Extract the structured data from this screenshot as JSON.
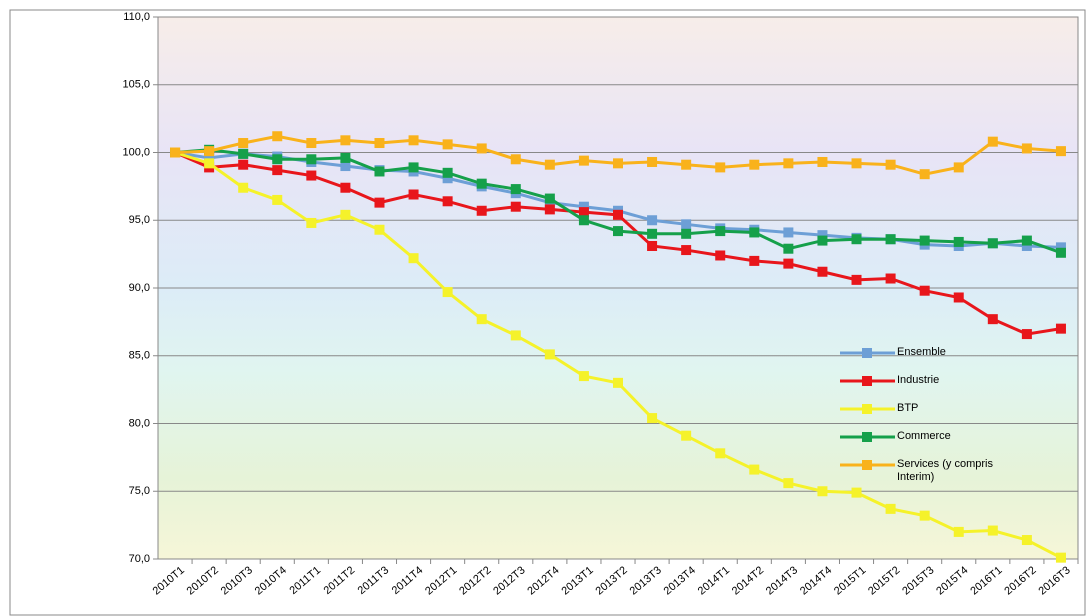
{
  "chart_data": {
    "type": "line",
    "categories": [
      "2010T1",
      "2010T2",
      "2010T3",
      "2010T4",
      "2011T1",
      "2011T2",
      "2011T3",
      "2011T4",
      "2012T1",
      "2012T2",
      "2012T3",
      "2012T4",
      "2013T1",
      "2013T2",
      "2013T3",
      "2013T4",
      "2014T1",
      "2014T2",
      "2014T3",
      "2014T4",
      "2015T1",
      "2015T2",
      "2015T3",
      "2015T4",
      "2016T1",
      "2016T2",
      "2016T3"
    ],
    "series": [
      {
        "name": "Ensemble",
        "color": "#6d9fd6",
        "values": [
          100,
          99.6,
          99.9,
          99.7,
          99.3,
          99.0,
          98.7,
          98.6,
          98.1,
          97.5,
          97.0,
          96.3,
          96.0,
          95.7,
          95.0,
          94.7,
          94.4,
          94.3,
          94.1,
          93.9,
          93.7,
          93.6,
          93.2,
          93.1,
          93.3,
          93.1,
          93.0
        ]
      },
      {
        "name": "Industrie",
        "color": "#e8161b",
        "values": [
          100,
          98.9,
          99.1,
          98.7,
          98.3,
          97.4,
          96.3,
          96.9,
          96.4,
          95.7,
          96.0,
          95.8,
          95.6,
          95.4,
          93.1,
          92.8,
          92.4,
          92.0,
          91.8,
          91.2,
          90.6,
          90.7,
          89.8,
          89.3,
          87.7,
          86.6,
          87.0
        ]
      },
      {
        "name": "BTP",
        "color": "#f5f22a",
        "values": [
          100,
          99.2,
          97.4,
          96.5,
          94.8,
          95.4,
          94.3,
          92.2,
          89.7,
          87.7,
          86.5,
          85.1,
          83.5,
          83.0,
          80.4,
          79.1,
          77.8,
          76.6,
          75.6,
          75.0,
          74.9,
          73.7,
          73.2,
          72.0,
          72.1,
          71.4,
          70.1
        ]
      },
      {
        "name": "Commerce",
        "color": "#15a04a",
        "values": [
          100,
          100.2,
          99.9,
          99.5,
          99.5,
          99.6,
          98.6,
          98.9,
          98.5,
          97.7,
          97.3,
          96.6,
          95.0,
          94.2,
          94.0,
          94.0,
          94.2,
          94.1,
          92.9,
          93.5,
          93.6,
          93.6,
          93.5,
          93.4,
          93.3,
          93.5,
          92.6
        ]
      },
      {
        "name": "Services (y compris Interim)",
        "color": "#f9b21b",
        "values": [
          100,
          100.1,
          100.7,
          101.2,
          100.7,
          100.9,
          100.7,
          100.9,
          100.6,
          100.3,
          99.5,
          99.1,
          99.4,
          99.2,
          99.3,
          99.1,
          98.9,
          99.1,
          99.2,
          99.3,
          99.2,
          99.1,
          98.4,
          98.9,
          100.8,
          100.3,
          100.1
        ]
      }
    ],
    "ylim": [
      70,
      110
    ],
    "yticks": [
      {
        "value": 70,
        "label": "70,0"
      },
      {
        "value": 75,
        "label": "75,0"
      },
      {
        "value": 80,
        "label": "80,0"
      },
      {
        "value": 85,
        "label": "85,0"
      },
      {
        "value": 90,
        "label": "90,0"
      },
      {
        "value": 95,
        "label": "95,0"
      },
      {
        "value": 100,
        "label": "100,0"
      },
      {
        "value": 105,
        "label": "105,0"
      },
      {
        "value": 110,
        "label": "110,0"
      }
    ],
    "grid": true,
    "legend": "lower right"
  }
}
